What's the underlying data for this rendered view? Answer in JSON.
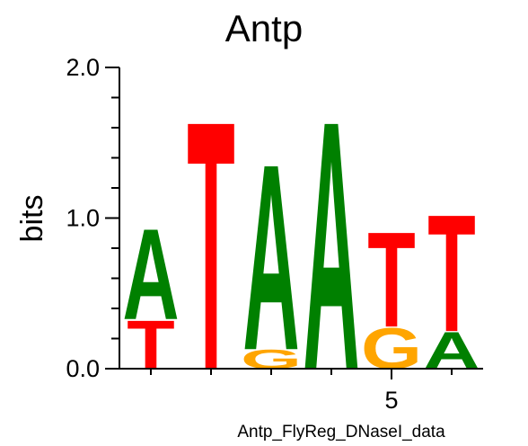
{
  "chart_data": {
    "type": "sequence-logo",
    "title": "Antp",
    "ylabel": "bits",
    "xlabel": "Antp_FlyReg_DNaseI_data",
    "ylim": [
      0,
      2
    ],
    "yticks": [
      "0.0",
      "1.0",
      "2.0"
    ],
    "xtick_labels": [
      {
        "position": 5,
        "label": "5"
      }
    ],
    "colors": {
      "A": "#008000",
      "C": "#0000ff",
      "G": "#ffa500",
      "T": "#ff0000"
    },
    "positions": [
      {
        "position": 1,
        "letters": [
          {
            "base": "T",
            "bits": 0.33
          },
          {
            "base": "A",
            "bits": 0.62
          }
        ]
      },
      {
        "position": 2,
        "letters": [
          {
            "base": "T",
            "bits": 1.7
          }
        ]
      },
      {
        "position": 3,
        "letters": [
          {
            "base": "G",
            "bits": 0.13
          },
          {
            "base": "A",
            "bits": 1.27
          }
        ]
      },
      {
        "position": 4,
        "letters": [
          {
            "base": "A",
            "bits": 1.7
          }
        ]
      },
      {
        "position": 5,
        "letters": [
          {
            "base": "G",
            "bits": 0.28
          },
          {
            "base": "T",
            "bits": 0.65
          }
        ]
      },
      {
        "position": 6,
        "letters": [
          {
            "base": "A",
            "bits": 0.25
          },
          {
            "base": "T",
            "bits": 0.8
          }
        ]
      }
    ]
  }
}
